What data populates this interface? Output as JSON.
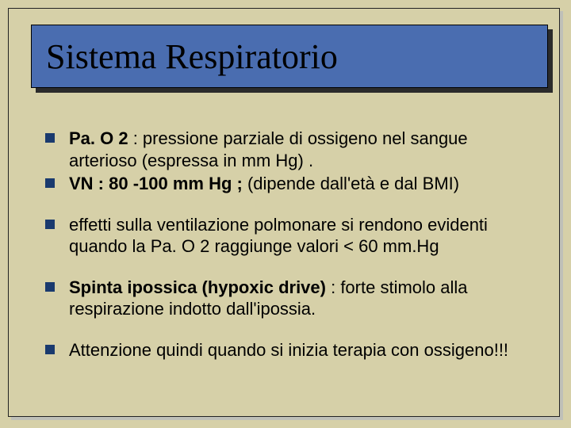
{
  "title": "Sistema Respiratorio",
  "colors": {
    "background": "#d6d0a8",
    "titleBar": "#4a6db0",
    "bulletMarker": "#1a3a6e",
    "shadow": "#2b2b2b",
    "panelShadow": "#bfc0b8",
    "textColor": "#000000"
  },
  "typography": {
    "titleFont": "Times New Roman",
    "titleSize": 44,
    "bodyFont": "Arial",
    "bodySize": 22
  },
  "bullets": {
    "b1": {
      "label": "Pa. O 2",
      "rest": " : pressione parziale di ossigeno nel sangue arterioso (espressa in mm Hg) ."
    },
    "b2": {
      "label": "VN : 80 -100 mm Hg ;",
      "rest": " (dipende dall'età e dal BMI)"
    },
    "b3": {
      "text": "effetti sulla ventilazione polmonare si rendono evidenti quando  la Pa. O 2 raggiunge valori < 60 mm.Hg"
    },
    "b4": {
      "label": "Spinta ipossica (hypoxic drive)",
      "rest": " : forte stimolo alla respirazione  indotto dall'ipossia."
    },
    "b5": {
      "text": "Attenzione quindi quando si inizia terapia con ossigeno!!!"
    }
  }
}
